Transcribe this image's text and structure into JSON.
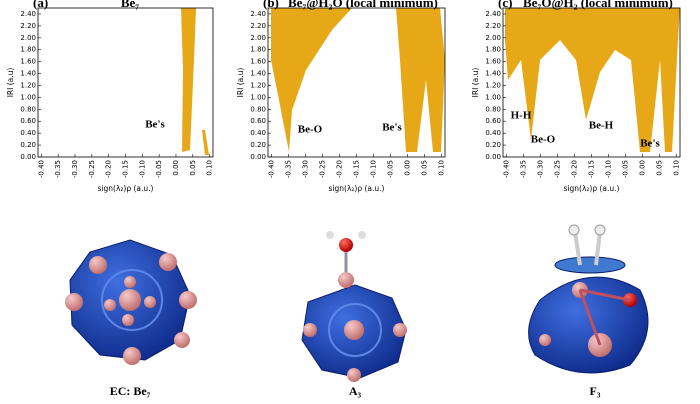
{
  "chart_data": [
    {
      "type": "scatter",
      "panel_label": "(a)",
      "title": "Be₇",
      "xlabel": "sign(λ₂)ρ (a.u.)",
      "ylabel": "IRI (a.u)",
      "color": "#e6a817",
      "annotations": [
        "Be's"
      ],
      "xlim": [
        -0.41,
        0.11
      ],
      "ylim": [
        0,
        2.5
      ],
      "xticks": [
        {
          "value": -0.4,
          "label": "-0.40"
        },
        {
          "value": -0.35,
          "label": "-0.35"
        },
        {
          "value": -0.3,
          "label": "-0.30"
        },
        {
          "value": -0.25,
          "label": "-0.25"
        },
        {
          "value": -0.2,
          "label": "-0.20"
        },
        {
          "value": -0.15,
          "label": "-0.15"
        },
        {
          "value": -0.1,
          "label": "-0.10"
        },
        {
          "value": -0.05,
          "label": "-0.05"
        },
        {
          "value": 0,
          "label": "0.00"
        },
        {
          "value": 0.05,
          "label": "0.05"
        },
        {
          "value": 0.1,
          "label": "0.10"
        }
      ],
      "yticks": [
        {
          "value": 0,
          "label": "0.00"
        },
        {
          "value": 0.2,
          "label": "0.20"
        },
        {
          "value": 0.4,
          "label": "0.40"
        },
        {
          "value": 0.6,
          "label": "0.60"
        },
        {
          "value": 0.8,
          "label": "0.80"
        },
        {
          "value": 1,
          "label": "1.00"
        },
        {
          "value": 1.2,
          "label": "1.20"
        },
        {
          "value": 1.4,
          "label": "1.40"
        },
        {
          "value": 1.6,
          "label": "1.60"
        },
        {
          "value": 1.8,
          "label": "1.80"
        },
        {
          "value": 2,
          "label": "2.00"
        },
        {
          "value": 2.2,
          "label": "2.20"
        },
        {
          "value": 2.4,
          "label": "2.40"
        }
      ]
    },
    {
      "type": "scatter",
      "panel_label": "(b)",
      "title": "Be₇@H₂O (local minimum)",
      "xlabel": "sign(λ₂)ρ (a.u.)",
      "ylabel": "IRI (a.u)",
      "color": "#e6a817",
      "annotations": [
        "Be-O",
        "Be's"
      ],
      "xlim": [
        -0.41,
        0.11
      ],
      "ylim": [
        0,
        2.5
      ],
      "xticks": [
        {
          "value": -0.4,
          "label": "-0.40"
        },
        {
          "value": -0.35,
          "label": "-0.35"
        },
        {
          "value": -0.3,
          "label": "-0.30"
        },
        {
          "value": -0.25,
          "label": "-0.25"
        },
        {
          "value": -0.2,
          "label": "-0.20"
        },
        {
          "value": -0.15,
          "label": "-0.15"
        },
        {
          "value": -0.1,
          "label": "-0.10"
        },
        {
          "value": -0.05,
          "label": "-0.05"
        },
        {
          "value": 0,
          "label": "0.00"
        },
        {
          "value": 0.05,
          "label": "0.05"
        },
        {
          "value": 0.1,
          "label": "0.10"
        }
      ],
      "yticks": [
        {
          "value": 0,
          "label": "0.00"
        },
        {
          "value": 0.2,
          "label": "0.20"
        },
        {
          "value": 0.4,
          "label": "0.40"
        },
        {
          "value": 0.6,
          "label": "0.60"
        },
        {
          "value": 0.8,
          "label": "0.80"
        },
        {
          "value": 1,
          "label": "1.00"
        },
        {
          "value": 1.2,
          "label": "1.20"
        },
        {
          "value": 1.4,
          "label": "1.40"
        },
        {
          "value": 1.6,
          "label": "1.60"
        },
        {
          "value": 1.8,
          "label": "1.80"
        },
        {
          "value": 2,
          "label": "2.00"
        },
        {
          "value": 2.2,
          "label": "2.20"
        },
        {
          "value": 2.4,
          "label": "2.40"
        }
      ]
    },
    {
      "type": "scatter",
      "panel_label": "(c)",
      "title": "Be₇O@H₂ (local minimum)",
      "xlabel": "sign(λ₂)ρ (a.u.)",
      "ylabel": "IRI (a.u)",
      "color": "#e6a817",
      "annotations": [
        "H-H",
        "Be-O",
        "Be-H",
        "Be's"
      ],
      "xlim": [
        -0.41,
        0.11
      ],
      "ylim": [
        0,
        2.5
      ],
      "xticks": [
        {
          "value": -0.4,
          "label": "-0.40"
        },
        {
          "value": -0.35,
          "label": "-0.35"
        },
        {
          "value": -0.3,
          "label": "-0.30"
        },
        {
          "value": -0.25,
          "label": "-0.25"
        },
        {
          "value": -0.2,
          "label": "-0.20"
        },
        {
          "value": -0.15,
          "label": "-0.15"
        },
        {
          "value": -0.1,
          "label": "-0.10"
        },
        {
          "value": -0.05,
          "label": "-0.05"
        },
        {
          "value": 0,
          "label": "0.00"
        },
        {
          "value": 0.05,
          "label": "0.05"
        },
        {
          "value": 0.1,
          "label": "0.10"
        }
      ],
      "yticks": [
        {
          "value": 0,
          "label": "0.00"
        },
        {
          "value": 0.2,
          "label": "0.20"
        },
        {
          "value": 0.4,
          "label": "0.40"
        },
        {
          "value": 0.6,
          "label": "0.60"
        },
        {
          "value": 0.8,
          "label": "0.80"
        },
        {
          "value": 1,
          "label": "1.00"
        },
        {
          "value": 1.2,
          "label": "1.20"
        },
        {
          "value": 1.4,
          "label": "1.40"
        },
        {
          "value": 1.6,
          "label": "1.60"
        },
        {
          "value": 1.8,
          "label": "1.80"
        },
        {
          "value": 2,
          "label": "2.00"
        },
        {
          "value": 2.2,
          "label": "2.20"
        },
        {
          "value": 2.4,
          "label": "2.40"
        }
      ]
    }
  ],
  "captions": [
    "EC: Be₇",
    "A₃",
    "F₃"
  ]
}
